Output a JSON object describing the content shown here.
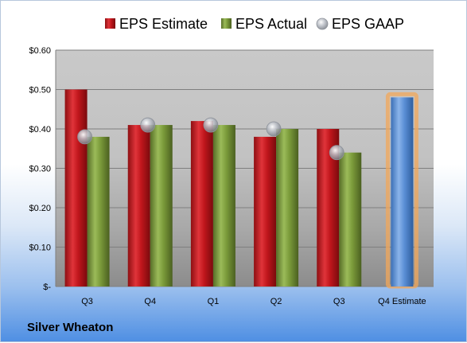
{
  "company": "Silver Wheaton",
  "chart_data": {
    "type": "bar",
    "categories": [
      "Q3",
      "Q4",
      "Q1",
      "Q2",
      "Q3",
      "Q4 Estimate"
    ],
    "series": [
      {
        "name": "EPS Estimate",
        "kind": "bar",
        "color": "#c0161c",
        "values": [
          0.5,
          0.41,
          0.42,
          0.38,
          0.4,
          null
        ]
      },
      {
        "name": "EPS Actual",
        "kind": "bar",
        "color": "#7a9a3a",
        "values": [
          0.38,
          0.41,
          0.41,
          0.4,
          0.34,
          null
        ]
      },
      {
        "name": "EPS GAAP",
        "kind": "marker",
        "color": "#b0b4bc",
        "values": [
          0.38,
          0.41,
          0.41,
          0.4,
          0.34,
          null
        ]
      },
      {
        "name": "",
        "kind": "bar",
        "color": "#5b8fd6",
        "highlight": "#f2a75a",
        "values": [
          null,
          null,
          null,
          null,
          null,
          0.48
        ]
      }
    ],
    "y_tick_labels": [
      "$-",
      "$0.10",
      "$0.20",
      "$0.30",
      "$0.40",
      "$0.50",
      "$0.60"
    ],
    "ylim": [
      0,
      0.6
    ],
    "grid": true,
    "legend_position": "top"
  }
}
